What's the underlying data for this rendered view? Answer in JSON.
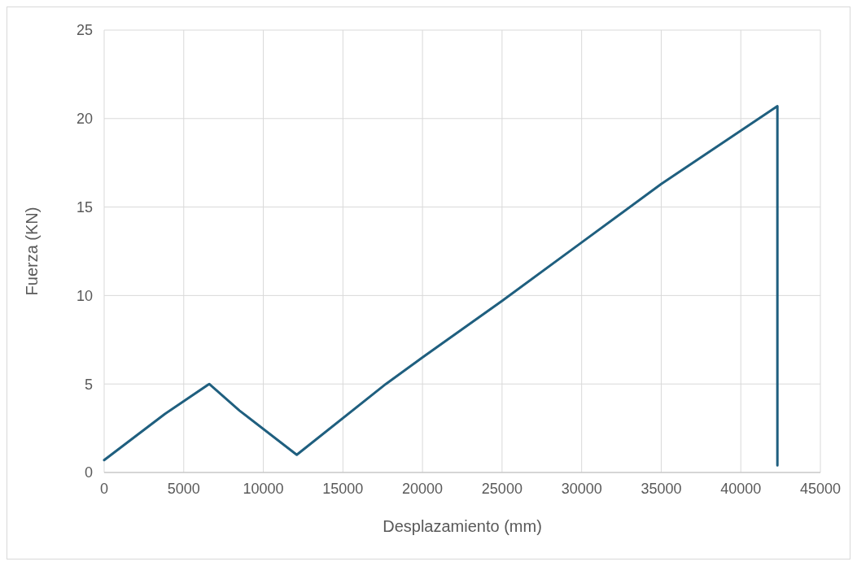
{
  "chart_data": {
    "type": "line",
    "xlabel": "Desplazamiento (mm)",
    "ylabel": "Fuerza (KN)",
    "series": [
      {
        "color": "#1f5f7f",
        "x": [
          0,
          3800,
          6600,
          8500,
          12100,
          17700,
          20000,
          25000,
          30000,
          35000,
          42300,
          42300
        ],
        "values": [
          0.7,
          3.3,
          5.0,
          3.5,
          1.0,
          5.0,
          6.5,
          9.7,
          13.0,
          16.3,
          20.7,
          0.4
        ]
      }
    ],
    "xlim": [
      0,
      45000
    ],
    "xticks": [
      0,
      5000,
      10000,
      15000,
      20000,
      25000,
      30000,
      35000,
      40000,
      45000
    ],
    "ylim": [
      0,
      25
    ],
    "yticks": [
      0,
      5,
      10,
      15,
      20,
      25
    ],
    "grid": true,
    "marker": "none",
    "line_style": "solid"
  }
}
